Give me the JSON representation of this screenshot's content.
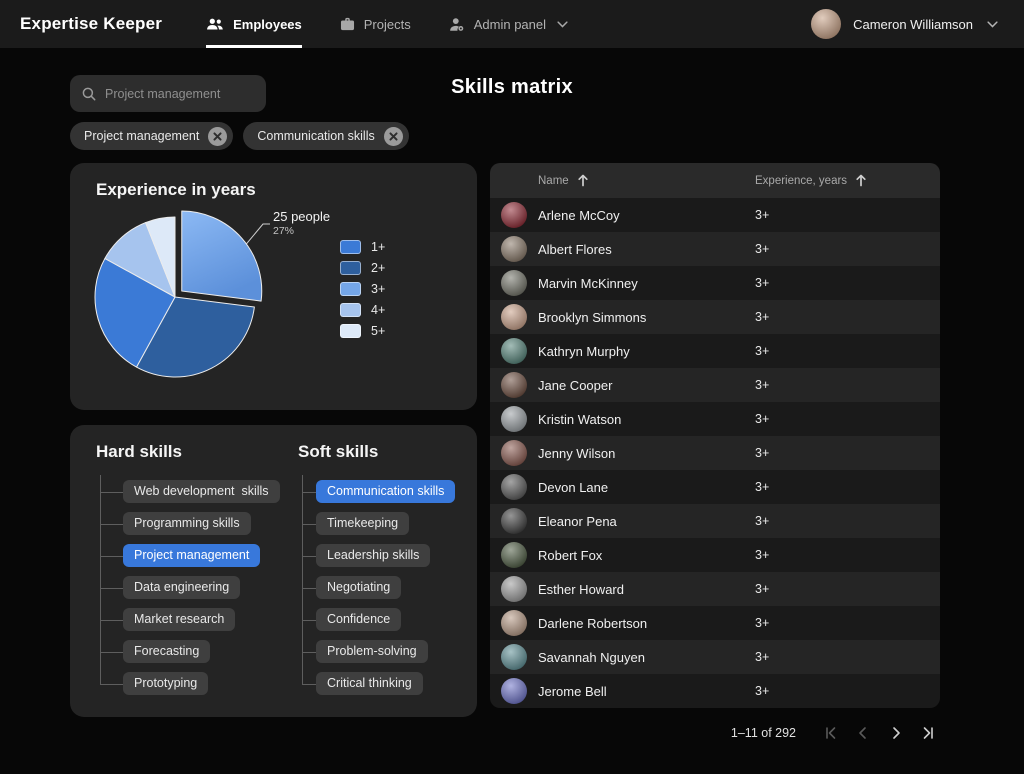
{
  "brand": "Expertise Keeper",
  "nav": {
    "items": [
      {
        "label": "Employees",
        "icon": "people-icon",
        "active": true
      },
      {
        "label": "Projects",
        "icon": "briefcase-icon",
        "active": false
      },
      {
        "label": "Admin panel",
        "icon": "admin-gear-icon",
        "active": false,
        "has_dropdown": true
      }
    ]
  },
  "user": {
    "name": "Cameron Williamson",
    "avatar_color": "#c8a287"
  },
  "page_title": "Skills matrix",
  "search": {
    "placeholder": "Project management"
  },
  "filters": [
    {
      "label": "Project management"
    },
    {
      "label": "Communication skills"
    }
  ],
  "chart_data": {
    "type": "pie",
    "title": "Experience in years",
    "legend_position": "right",
    "start_angle_deg": 0,
    "direction": "clockwise",
    "slices": [
      {
        "label": "3+",
        "percent": 27,
        "color": "#74a6e8",
        "gradient": [
          "#8cb9f4",
          "#5c90da"
        ],
        "exploded": true,
        "annotation": {
          "line1": "25 people",
          "line2": "27%"
        }
      },
      {
        "label": "2+",
        "percent": 31,
        "color": "#2e5f9e"
      },
      {
        "label": "1+",
        "percent": 25,
        "color": "#3b7ad6"
      },
      {
        "label": "4+",
        "percent": 11,
        "color": "#a6c4ee"
      },
      {
        "label": "5+",
        "percent": 6,
        "color": "#dde9f8"
      }
    ],
    "legend": [
      {
        "label": "1+",
        "color": "#3b7ad6"
      },
      {
        "label": "2+",
        "color": "#2e5f9e"
      },
      {
        "label": "3+",
        "color": "#74a6e8"
      },
      {
        "label": "4+",
        "color": "#a6c4ee"
      },
      {
        "label": "5+",
        "color": "#dde9f8"
      }
    ]
  },
  "skills": {
    "selected_color": "#3878db",
    "columns": [
      {
        "title": "Hard skills",
        "items": [
          {
            "label": "Web development  skills",
            "selected": false
          },
          {
            "label": "Programming skills",
            "selected": false
          },
          {
            "label": "Project management",
            "selected": true
          },
          {
            "label": "Data engineering",
            "selected": false
          },
          {
            "label": "Market research",
            "selected": false
          },
          {
            "label": "Forecasting",
            "selected": false
          },
          {
            "label": "Prototyping",
            "selected": false
          }
        ]
      },
      {
        "title": "Soft skills",
        "items": [
          {
            "label": "Communication skills",
            "selected": true
          },
          {
            "label": "Timekeeping",
            "selected": false
          },
          {
            "label": "Leadership skills",
            "selected": false
          },
          {
            "label": "Negotiating",
            "selected": false
          },
          {
            "label": "Confidence",
            "selected": false
          },
          {
            "label": "Problem-solving",
            "selected": false
          },
          {
            "label": "Critical thinking",
            "selected": false
          }
        ]
      }
    ]
  },
  "table": {
    "columns": [
      {
        "label": "Name",
        "sort": "asc"
      },
      {
        "label": "Experience, years",
        "sort": "asc"
      }
    ],
    "rows": [
      {
        "name": "Arlene McCoy",
        "experience": "3+",
        "avatar_color": "#8f2b36"
      },
      {
        "name": "Albert Flores",
        "experience": "3+",
        "avatar_color": "#8a7a6a"
      },
      {
        "name": "Marvin McKinney",
        "experience": "3+",
        "avatar_color": "#74756a"
      },
      {
        "name": "Brooklyn Simmons",
        "experience": "3+",
        "avatar_color": "#caa28b"
      },
      {
        "name": "Kathryn Murphy",
        "experience": "3+",
        "avatar_color": "#57857b"
      },
      {
        "name": "Jane Cooper",
        "experience": "3+",
        "avatar_color": "#6e4f41"
      },
      {
        "name": "Kristin Watson",
        "experience": "3+",
        "avatar_color": "#9aa0a4"
      },
      {
        "name": "Jenny Wilson",
        "experience": "3+",
        "avatar_color": "#8a5a50"
      },
      {
        "name": "Devon Lane",
        "experience": "3+",
        "avatar_color": "#5a5a5a"
      },
      {
        "name": "Eleanor Pena",
        "experience": "3+",
        "avatar_color": "#3f3f3f"
      },
      {
        "name": "Robert Fox",
        "experience": "3+",
        "avatar_color": "#4f5d44"
      },
      {
        "name": "Esther Howard",
        "experience": "3+",
        "avatar_color": "#9c9c9c"
      },
      {
        "name": "Darlene Robertson",
        "experience": "3+",
        "avatar_color": "#b79a86"
      },
      {
        "name": "Savannah Nguyen",
        "experience": "3+",
        "avatar_color": "#5f9096"
      },
      {
        "name": "Jerome Bell",
        "experience": "3+",
        "avatar_color": "#6f74c8"
      }
    ]
  },
  "pagination": {
    "range_label": "1–11 of 292",
    "buttons": [
      {
        "name": "first-page",
        "enabled": false
      },
      {
        "name": "previous-page",
        "enabled": false
      },
      {
        "name": "next-page",
        "enabled": true
      },
      {
        "name": "last-page",
        "enabled": true
      }
    ]
  }
}
